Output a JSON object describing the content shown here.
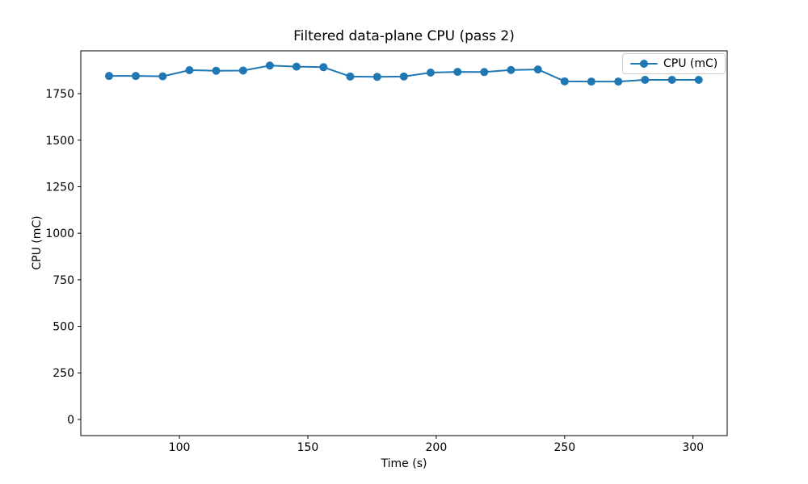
{
  "figure": {
    "background": "#ffffff",
    "frame_color": "#000000",
    "text_color": "#000000",
    "legend_border_color": "#cccccc"
  },
  "chart_data": {
    "type": "line",
    "title": "Filtered data-plane CPU (pass 2)",
    "xlabel": "Time (s)",
    "ylabel": "CPU (mC)",
    "xlim": [
      61.6,
      313.3
    ],
    "ylim": [
      -87,
      1980
    ],
    "xticks": [
      100,
      150,
      200,
      250,
      300
    ],
    "yticks": [
      0,
      250,
      500,
      750,
      1000,
      1250,
      1500,
      1750
    ],
    "grid": false,
    "legend": {
      "position": "upper right",
      "entries": [
        "CPU (mC)"
      ]
    },
    "series": [
      {
        "name": "CPU (mC)",
        "color": "#1f77b4",
        "marker": "circle",
        "marker_radius": 5,
        "line_width": 2,
        "x": [
          72.6,
          83.0,
          93.5,
          103.9,
          114.3,
          124.8,
          135.2,
          145.6,
          156.1,
          166.5,
          177.0,
          187.4,
          197.8,
          208.3,
          218.7,
          229.1,
          239.6,
          250.0,
          260.4,
          270.9,
          281.3,
          291.8,
          302.2
        ],
        "y": [
          1845,
          1845,
          1843,
          1876,
          1873,
          1874,
          1901,
          1895,
          1892,
          1842,
          1840,
          1842,
          1863,
          1867,
          1866,
          1877,
          1880,
          1816,
          1815,
          1815,
          1824,
          1824,
          1824
        ]
      }
    ]
  }
}
